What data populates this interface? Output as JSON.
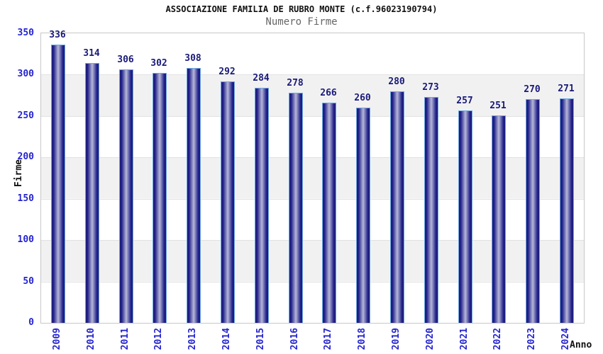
{
  "header": {
    "title": "ASSOCIAZIONE FAMILIA DE RUBRO MONTE (c.f.96023190794)",
    "subtitle": "Numero Firme"
  },
  "chart_data": {
    "type": "bar",
    "title": "ASSOCIAZIONE FAMILIA DE RUBRO MONTE (c.f.96023190794)",
    "subtitle": "Numero Firme",
    "xlabel": "Anno",
    "ylabel": "Firme",
    "categories": [
      "2009",
      "2010",
      "2011",
      "2012",
      "2013",
      "2014",
      "2015",
      "2016",
      "2017",
      "2018",
      "2019",
      "2020",
      "2021",
      "2022",
      "2023",
      "2024"
    ],
    "values": [
      336,
      314,
      306,
      302,
      308,
      292,
      284,
      278,
      266,
      260,
      280,
      273,
      257,
      251,
      270,
      271
    ],
    "ylim": [
      0,
      350
    ],
    "ytick_step": 50,
    "grid": "horizontal-bands",
    "legend": "none",
    "bar_labels": true
  },
  "colors": {
    "tick_label": "#2424cf",
    "value_label": "#1a1a7a",
    "axis_title": "#111111",
    "subtitle": "#666666",
    "bar_edge": "#6fa8e0",
    "bar_dark": "#1b1b77",
    "bar_mid": "#22228c",
    "bar_light": "#b7b7d8",
    "band_fill": "#f1f1f1",
    "gridline": "#e2e2e2",
    "plot_border": "#c8c8c8",
    "background": "#ffffff"
  }
}
